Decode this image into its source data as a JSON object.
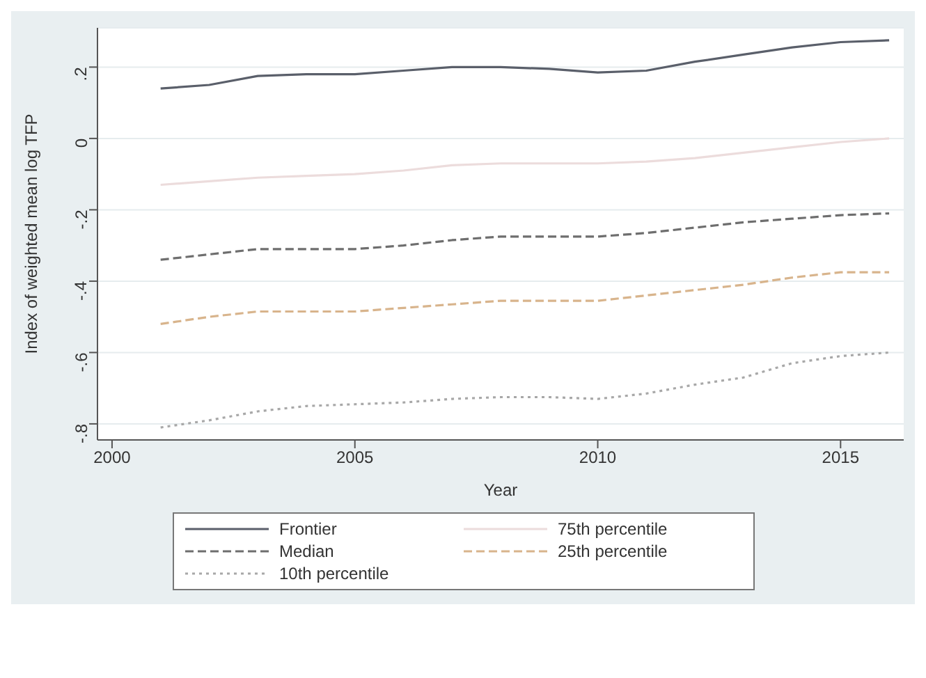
{
  "chart_data": {
    "type": "line",
    "xlabel": "Year",
    "ylabel": "Index of weighted mean log TFP",
    "x": [
      2001,
      2002,
      2003,
      2004,
      2005,
      2006,
      2007,
      2008,
      2009,
      2010,
      2011,
      2012,
      2013,
      2014,
      2015,
      2016
    ],
    "series": [
      {
        "name": "Frontier",
        "color": "#5a5f6a",
        "line_style": "solid",
        "values": [
          0.14,
          0.15,
          0.175,
          0.18,
          0.18,
          0.19,
          0.2,
          0.2,
          0.195,
          0.185,
          0.19,
          0.215,
          0.235,
          0.255,
          0.27,
          0.275
        ]
      },
      {
        "name": "75th percentile",
        "color": "#ecdcdc",
        "line_style": "solid",
        "values": [
          -0.13,
          -0.12,
          -0.11,
          -0.105,
          -0.1,
          -0.09,
          -0.075,
          -0.07,
          -0.07,
          -0.07,
          -0.065,
          -0.055,
          -0.04,
          -0.025,
          -0.01,
          0.0
        ]
      },
      {
        "name": "Median",
        "color": "#6e6e6e",
        "line_style": "dashed",
        "values": [
          -0.34,
          -0.325,
          -0.31,
          -0.31,
          -0.31,
          -0.3,
          -0.285,
          -0.275,
          -0.275,
          -0.275,
          -0.265,
          -0.25,
          -0.235,
          -0.225,
          -0.215,
          -0.21
        ]
      },
      {
        "name": "25th percentile",
        "color": "#d8b48c",
        "line_style": "dashed",
        "values": [
          -0.52,
          -0.5,
          -0.485,
          -0.485,
          -0.485,
          -0.475,
          -0.465,
          -0.455,
          -0.455,
          -0.455,
          -0.44,
          -0.425,
          -0.41,
          -0.39,
          -0.375,
          -0.375
        ]
      },
      {
        "name": "10th percentile",
        "color": "#a8a8a8",
        "line_style": "dotted",
        "values": [
          -0.81,
          -0.79,
          -0.765,
          -0.75,
          -0.745,
          -0.74,
          -0.73,
          -0.725,
          -0.725,
          -0.73,
          -0.715,
          -0.69,
          -0.67,
          -0.63,
          -0.61,
          -0.6
        ]
      }
    ],
    "xlim": [
      1999.7,
      2016.3
    ],
    "xticks": [
      2000,
      2005,
      2010,
      2015
    ],
    "ylim": [
      -0.845,
      0.31
    ],
    "yticks": [
      {
        "value": -0.8,
        "label": "-.8"
      },
      {
        "value": -0.6,
        "label": "-.6"
      },
      {
        "value": -0.4,
        "label": "-.4"
      },
      {
        "value": -0.2,
        "label": "-.2"
      },
      0,
      {
        "value": 0.2,
        "label": ".2"
      }
    ],
    "grid": "y",
    "legend": "bottom",
    "marker": "none"
  }
}
